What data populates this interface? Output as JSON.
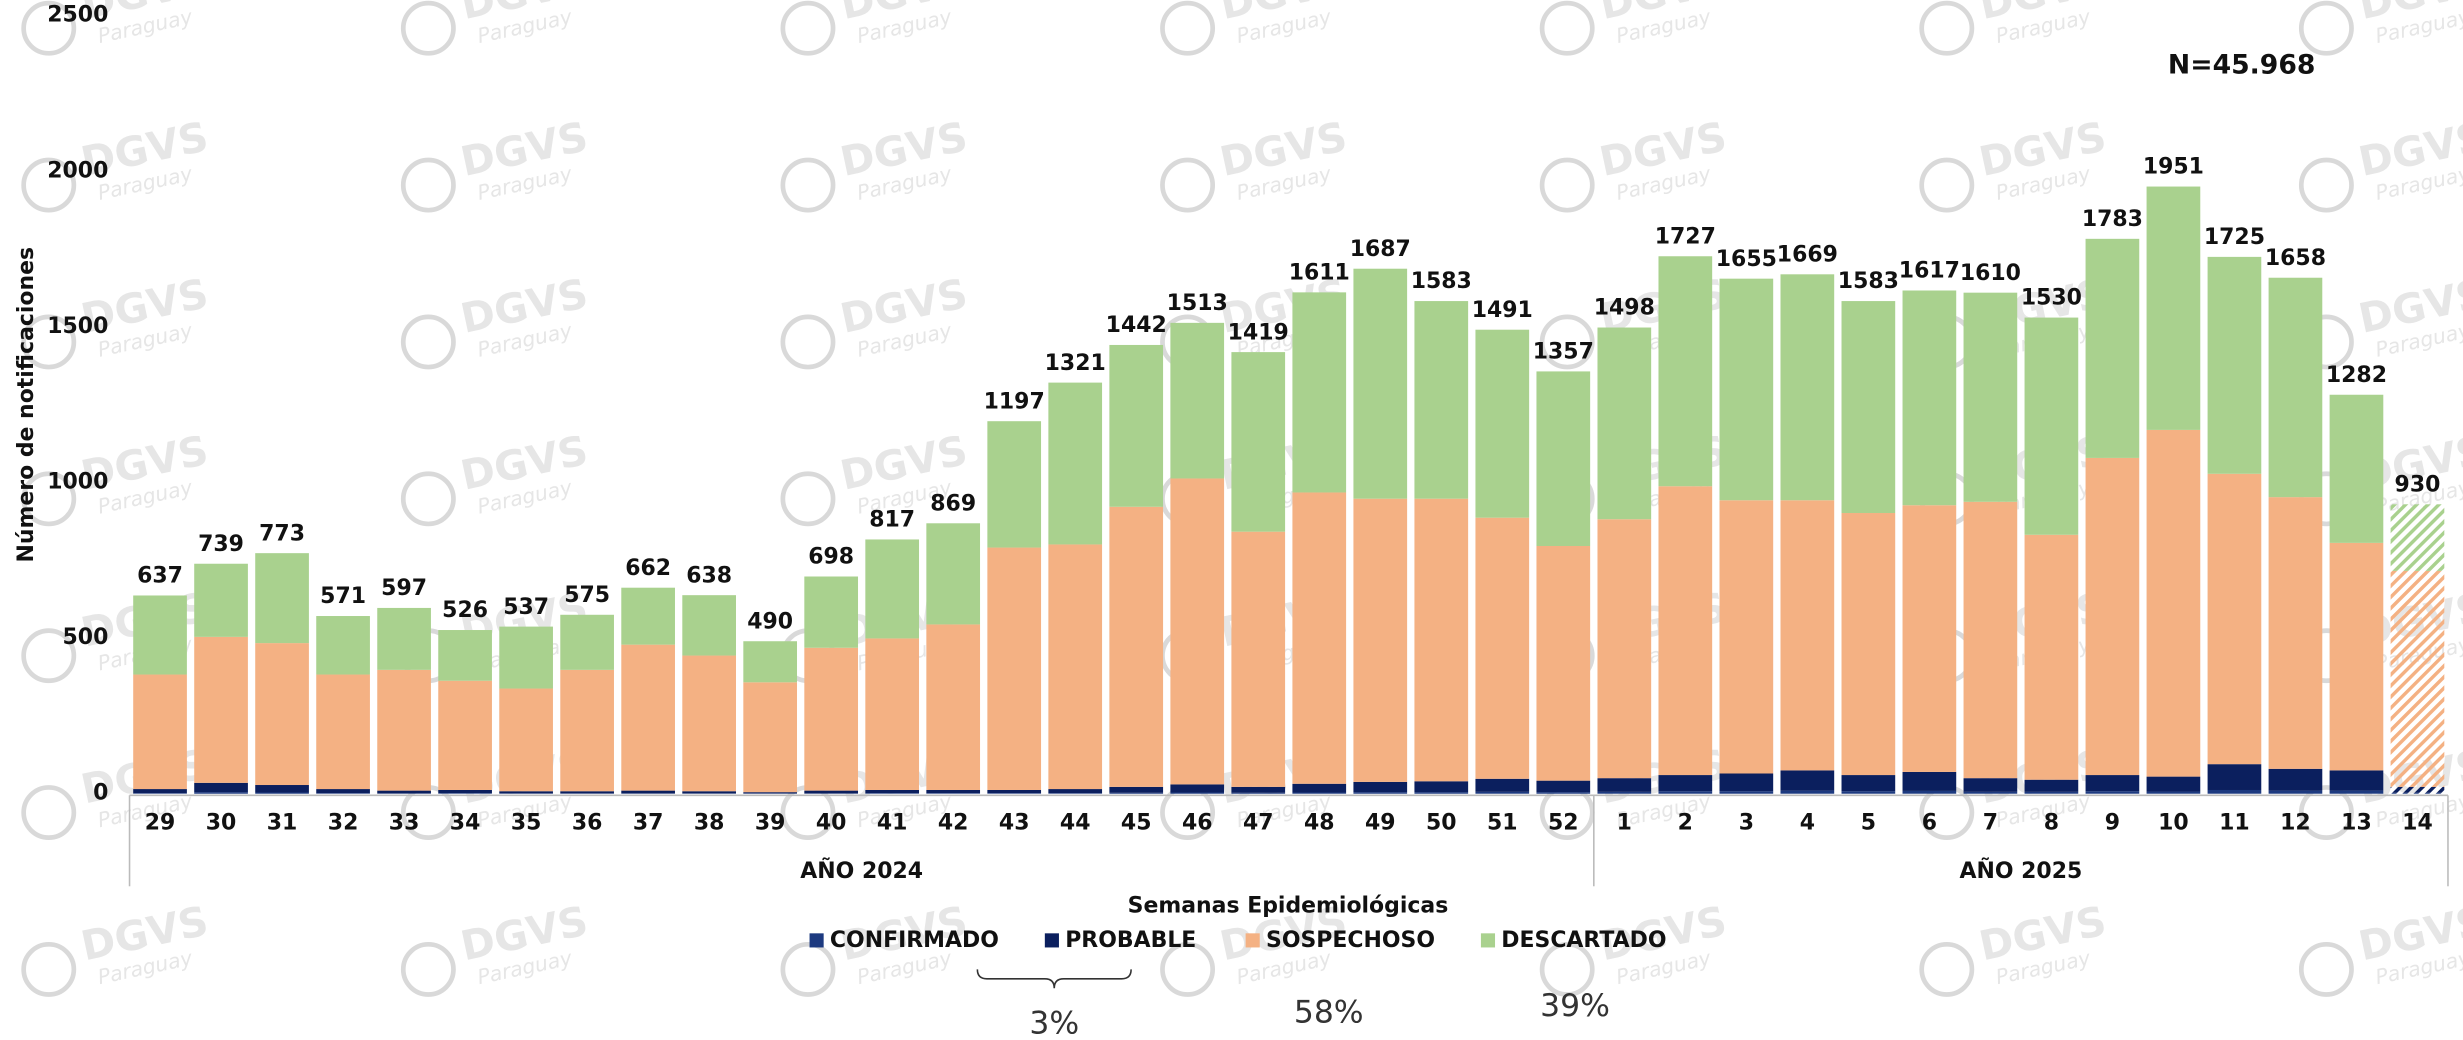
{
  "chart_data": {
    "type": "stacked_bar",
    "annotation": "N=45.968",
    "y_label": "Número de notificaciones",
    "x_label": "Semanas Epidemiológicas",
    "watermark": [
      "DGVS",
      "Paraguay"
    ],
    "group_labels": [
      "AÑO 2024",
      "AÑO 2025"
    ],
    "categories": [
      "29",
      "30",
      "31",
      "32",
      "33",
      "34",
      "35",
      "36",
      "37",
      "38",
      "39",
      "40",
      "41",
      "42",
      "43",
      "44",
      "45",
      "46",
      "47",
      "48",
      "49",
      "50",
      "51",
      "52",
      "1",
      "2",
      "3",
      "4",
      "5",
      "6",
      "7",
      "8",
      "9",
      "10",
      "11",
      "12",
      "13",
      "14"
    ],
    "totals": [
      637,
      739,
      773,
      571,
      597,
      526,
      537,
      575,
      662,
      638,
      490,
      698,
      817,
      869,
      1197,
      1321,
      1442,
      1513,
      1419,
      1611,
      1687,
      1583,
      1491,
      1357,
      1498,
      1727,
      1655,
      1669,
      1583,
      1617,
      1610,
      1530,
      1783,
      1951,
      1725,
      1658,
      1282,
      930
    ],
    "series": [
      {
        "name": "CONFIRMADO",
        "color": "#1d3a80",
        "values": [
          2,
          5,
          4,
          2,
          1,
          2,
          1,
          1,
          1,
          1,
          1,
          1,
          2,
          2,
          2,
          2,
          3,
          4,
          3,
          4,
          5,
          5,
          6,
          5,
          6,
          8,
          8,
          10,
          8,
          9,
          6,
          6,
          8,
          7,
          12,
          10,
          10,
          3
        ]
      },
      {
        "name": "PROBABLE",
        "color": "#0b1f5e",
        "values": [
          13,
          30,
          24,
          13,
          9,
          10,
          7,
          7,
          9,
          7,
          4,
          9,
          10,
          10,
          10,
          13,
          19,
          26,
          19,
          28,
          33,
          35,
          42,
          37,
          44,
          52,
          57,
          65,
          52,
          61,
          44,
          39,
          52,
          48,
          83,
          70,
          65,
          19
        ]
      },
      {
        "name": "SOSPECHOSO",
        "color": "#f4b183",
        "values": [
          368,
          469,
          456,
          368,
          388,
          351,
          330,
          390,
          469,
          436,
          353,
          459,
          487,
          532,
          779,
          786,
          900,
          983,
          820,
          936,
          910,
          908,
          839,
          754,
          832,
          928,
          878,
          868,
          842,
          857,
          888,
          787,
          1019,
          1114,
          933,
          873,
          731,
          694
        ]
      },
      {
        "name": "DESCARTADO",
        "color": "#a9d18e",
        "values": [
          254,
          235,
          289,
          188,
          199,
          163,
          199,
          177,
          183,
          194,
          132,
          229,
          318,
          325,
          406,
          520,
          520,
          500,
          577,
          643,
          739,
          635,
          604,
          561,
          616,
          739,
          712,
          726,
          681,
          690,
          672,
          698,
          704,
          782,
          697,
          705,
          476,
          214
        ]
      }
    ],
    "shares": {
      "values": [
        3,
        58,
        39
      ],
      "value_labels": [
        "3%",
        "58%",
        "39%"
      ]
    },
    "ylim": [
      0,
      2500
    ],
    "yticks": [
      0,
      500,
      1000,
      1500,
      2000,
      2500
    ],
    "grid": false
  }
}
